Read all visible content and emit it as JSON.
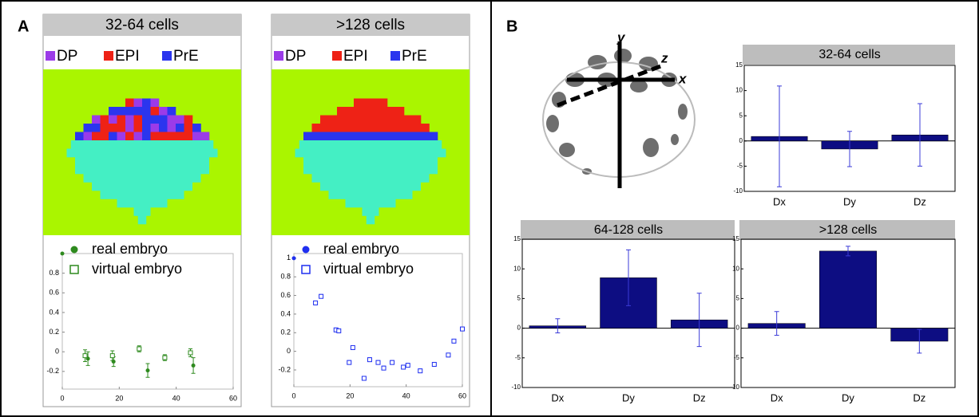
{
  "panel_a": {
    "label": "A",
    "simulations": [
      {
        "title": "32-64 cells"
      },
      {
        "title": ">128 cells"
      }
    ],
    "cell_types": [
      {
        "name": "DP",
        "color": "#9b3be8"
      },
      {
        "name": "EPI",
        "color": "#ee2216"
      },
      {
        "name": "PrE",
        "color": "#2b35ee"
      }
    ]
  },
  "panel_b": {
    "label": "B",
    "axis_labels": [
      "y",
      "z",
      "x"
    ]
  },
  "chart_data": [
    {
      "type": "scatter",
      "xlim": [
        0,
        60
      ],
      "xticks": [
        0,
        20,
        40,
        60
      ],
      "ylim": [
        -0.38,
        1.0
      ],
      "yticks": [
        -0.2,
        0,
        0.2,
        0.4,
        0.6,
        0.8
      ],
      "series": [
        {
          "name": "real embryo",
          "marker": "dot",
          "color": "#2e8a1e",
          "x": [
            0,
            9,
            18,
            30,
            46
          ],
          "values": [
            1,
            -0.07,
            -0.1,
            -0.19,
            -0.14
          ],
          "errors": [
            null,
            0.07,
            0.05,
            0.07,
            0.08
          ]
        },
        {
          "name": "virtual embryo",
          "marker": "square",
          "color": "#2e8a1e",
          "x": [
            8,
            17.6,
            27,
            36,
            45
          ],
          "values": [
            -0.04,
            -0.04,
            0.03,
            -0.06,
            -0.01
          ],
          "errors": [
            0.06,
            0.05,
            0.03,
            0.03,
            0.04
          ]
        }
      ]
    },
    {
      "type": "scatter",
      "xlim": [
        0,
        60
      ],
      "xticks": [
        0,
        20,
        40,
        60
      ],
      "ylim": [
        -0.38,
        1.05
      ],
      "yticks": [
        -0.2,
        0,
        0.2,
        0.4,
        0.6,
        0.8,
        1
      ],
      "series": [
        {
          "name": "real embryo",
          "marker": "dot",
          "color": "#1f2ff0",
          "x": [
            0
          ],
          "values": [
            1
          ]
        },
        {
          "name": "virtual embryo",
          "marker": "square",
          "color": "#1f2ff0",
          "x": [
            7.7,
            9.7,
            15,
            16,
            19.7,
            21,
            25,
            27,
            30,
            32,
            35,
            39,
            40.6,
            45,
            50,
            55,
            57,
            60
          ],
          "values": [
            0.52,
            0.59,
            0.23,
            0.22,
            -0.12,
            0.04,
            -0.29,
            -0.09,
            -0.12,
            -0.18,
            -0.12,
            -0.17,
            -0.15,
            -0.21,
            -0.14,
            -0.04,
            0.11,
            0.24
          ],
          "errors": [
            0.02,
            0.02,
            0.02,
            0.02,
            0.02,
            0.02,
            0.02,
            0.02,
            0.02,
            0.02,
            0.02,
            0.02,
            0.02,
            0.02,
            0.02,
            0.02,
            0.02,
            0.02
          ]
        }
      ]
    },
    {
      "type": "bar",
      "title": "32-64 cells",
      "categories": [
        "Dx",
        "Dy",
        "Dz"
      ],
      "values": [
        0.9,
        -1.6,
        1.2
      ],
      "errors": [
        10,
        3.5,
        6.2
      ],
      "color": "#0d0d82",
      "ylim": [
        -10,
        15
      ],
      "yticks": [
        -10,
        -5,
        0,
        5,
        10,
        15
      ]
    },
    {
      "type": "bar",
      "title": "64-128 cells",
      "categories": [
        "Dx",
        "Dy",
        "Dz"
      ],
      "values": [
        0.4,
        8.5,
        1.4
      ],
      "errors": [
        1.2,
        4.7,
        4.5
      ],
      "color": "#0d0d82",
      "ylim": [
        -10,
        15
      ],
      "yticks": [
        -10,
        -5,
        0,
        5,
        10,
        15
      ]
    },
    {
      "type": "bar",
      "title": ">128 cells",
      "categories": [
        "Dx",
        "Dy",
        "Dz"
      ],
      "values": [
        0.8,
        13,
        -2.2
      ],
      "errors": [
        2,
        0.8,
        2
      ],
      "color": "#0d0d82",
      "ylim": [
        -10,
        15
      ],
      "yticks": [
        -10,
        -5,
        0,
        5,
        10,
        15
      ]
    }
  ]
}
